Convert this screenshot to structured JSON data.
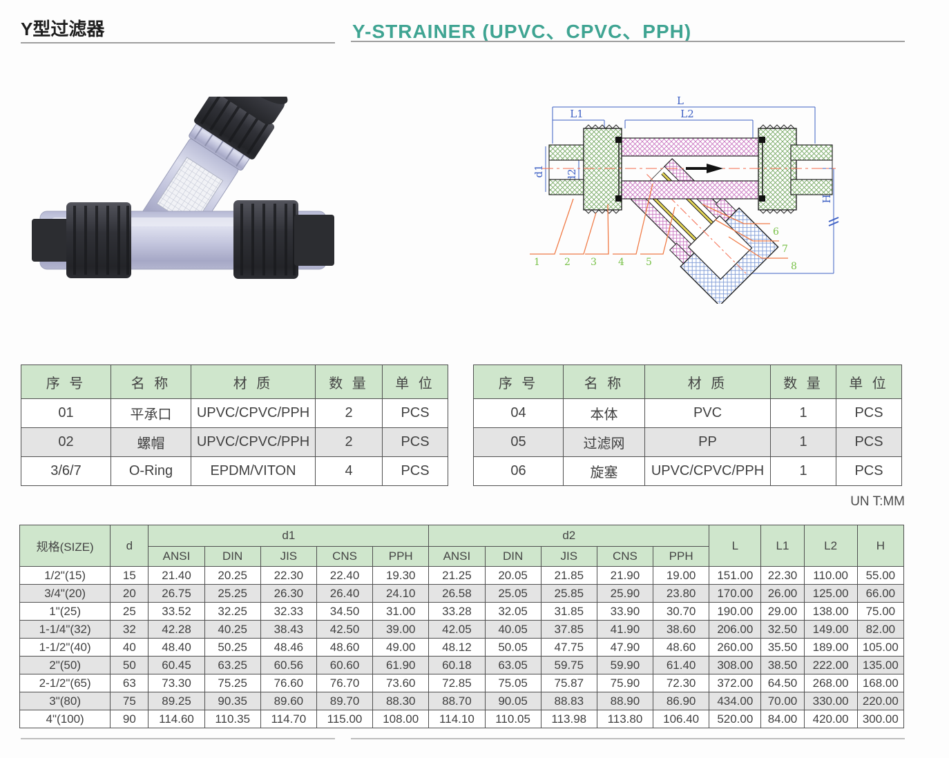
{
  "page": {
    "title_cn": "Y型过滤器",
    "title_en": "Y-STRAINER  (UPVC、CPVC、PPH)",
    "unit_note": "UN T:MM"
  },
  "colors": {
    "accent_teal": "#3FA492",
    "table_header_green": "#CFE6CC",
    "row_alt_gray": "#E4E4E4",
    "diagram_dim_blue": "#3C5FC4",
    "diagram_leader_orange": "#F07A45",
    "diagram_number_green": "#76C045"
  },
  "parts_table_left": {
    "headers": [
      "序 号",
      "名 称",
      "材 质",
      "数 量",
      "单 位"
    ],
    "rows": [
      [
        "01",
        "平承口",
        "UPVC/CPVC/PPH",
        "2",
        "PCS"
      ],
      [
        "02",
        "螺帽",
        "UPVC/CPVC/PPH",
        "2",
        "PCS"
      ],
      [
        "3/6/7",
        "O-Ring",
        "EPDM/VITON",
        "4",
        "PCS"
      ]
    ]
  },
  "parts_table_right": {
    "headers": [
      "序 号",
      "名 称",
      "材 质",
      "数 量",
      "单 位"
    ],
    "rows": [
      [
        "04",
        "本体",
        "PVC",
        "1",
        "PCS"
      ],
      [
        "05",
        "过滤网",
        "PP",
        "1",
        "PCS"
      ],
      [
        "06",
        "旋塞",
        "UPVC/CPVC/PPH",
        "1",
        "PCS"
      ]
    ]
  },
  "dim_table": {
    "size_header": "规格(SIZE)",
    "d_header": "d",
    "d1_header": "d1",
    "d2_header": "d2",
    "std_headers": [
      "ANSI",
      "DIN",
      "JIS",
      "CNS",
      "PPH"
    ],
    "l_header": "L",
    "l1_header": "L1",
    "l2_header": "L2",
    "h_header": "H",
    "rows": [
      {
        "size": "1/2\"(15)",
        "d": "15",
        "d1": [
          "21.40",
          "20.25",
          "22.30",
          "22.40",
          "19.30"
        ],
        "d2": [
          "21.25",
          "20.05",
          "21.85",
          "21.90",
          "19.00"
        ],
        "L": "151.00",
        "L1": "22.30",
        "L2": "110.00",
        "H": "55.00"
      },
      {
        "size": "3/4\"(20)",
        "d": "20",
        "d1": [
          "26.75",
          "25.25",
          "26.30",
          "26.40",
          "24.10"
        ],
        "d2": [
          "26.58",
          "25.05",
          "25.85",
          "25.90",
          "23.80"
        ],
        "L": "170.00",
        "L1": "26.00",
        "L2": "125.00",
        "H": "66.00"
      },
      {
        "size": "1\"(25)",
        "d": "25",
        "d1": [
          "33.52",
          "32.25",
          "32.33",
          "34.50",
          "31.00"
        ],
        "d2": [
          "33.28",
          "32.05",
          "31.85",
          "33.90",
          "30.70"
        ],
        "L": "190.00",
        "L1": "29.00",
        "L2": "138.00",
        "H": "75.00"
      },
      {
        "size": "1-1/4\"(32)",
        "d": "32",
        "d1": [
          "42.28",
          "40.25",
          "38.43",
          "42.50",
          "39.00"
        ],
        "d2": [
          "42.05",
          "40.05",
          "37.85",
          "41.90",
          "38.60"
        ],
        "L": "206.00",
        "L1": "32.50",
        "L2": "149.00",
        "H": "82.00"
      },
      {
        "size": "1-1/2\"(40)",
        "d": "40",
        "d1": [
          "48.40",
          "50.25",
          "48.46",
          "48.60",
          "49.00"
        ],
        "d2": [
          "48.12",
          "50.05",
          "47.75",
          "47.90",
          "48.60"
        ],
        "L": "260.00",
        "L1": "35.50",
        "L2": "189.00",
        "H": "105.00"
      },
      {
        "size": "2\"(50)",
        "d": "50",
        "d1": [
          "60.45",
          "63.25",
          "60.56",
          "60.60",
          "61.90"
        ],
        "d2": [
          "60.18",
          "63.05",
          "59.75",
          "59.90",
          "61.40"
        ],
        "L": "308.00",
        "L1": "38.50",
        "L2": "222.00",
        "H": "135.00"
      },
      {
        "size": "2-1/2\"(65)",
        "d": "63",
        "d1": [
          "73.30",
          "75.25",
          "76.60",
          "76.70",
          "73.60"
        ],
        "d2": [
          "72.85",
          "75.05",
          "75.87",
          "75.90",
          "72.30"
        ],
        "L": "372.00",
        "L1": "64.50",
        "L2": "268.00",
        "H": "168.00"
      },
      {
        "size": "3\"(80)",
        "d": "75",
        "d1": [
          "89.25",
          "90.35",
          "89.60",
          "89.70",
          "88.30"
        ],
        "d2": [
          "88.70",
          "90.05",
          "88.83",
          "88.90",
          "86.90"
        ],
        "L": "434.00",
        "L1": "70.00",
        "L2": "330.00",
        "H": "220.00"
      },
      {
        "size": "4\"(100)",
        "d": "90",
        "d1": [
          "114.60",
          "110.35",
          "114.70",
          "115.00",
          "108.00"
        ],
        "d2": [
          "114.10",
          "110.05",
          "113.98",
          "113.80",
          "106.40"
        ],
        "L": "520.00",
        "L1": "84.00",
        "L2": "420.00",
        "H": "300.00"
      }
    ]
  },
  "diagram": {
    "dim_labels": {
      "L": "L",
      "L1": "L1",
      "L2": "L2",
      "d1": "d1",
      "d2": "d2",
      "d": "d",
      "H": "H"
    },
    "part_numbers": [
      "1",
      "2",
      "3",
      "4",
      "5",
      "6",
      "7",
      "8"
    ]
  }
}
